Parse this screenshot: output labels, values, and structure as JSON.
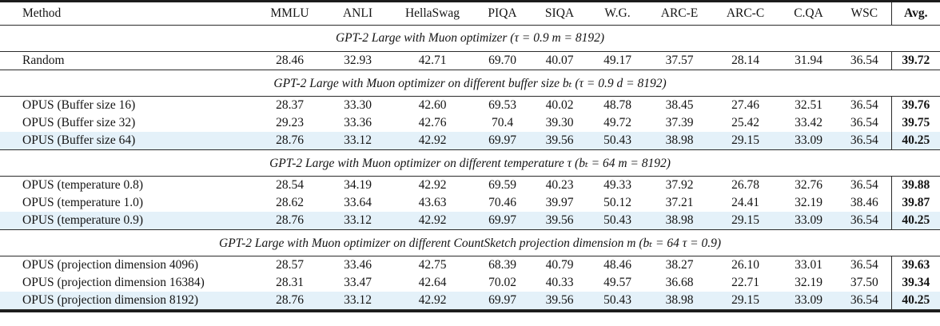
{
  "table": {
    "columns": [
      "Method",
      "MMLU",
      "ANLI",
      "HellaSwag",
      "PIQA",
      "SIQA",
      "W.G.",
      "ARC-E",
      "ARC-C",
      "C.QA",
      "WSC",
      "Avg."
    ],
    "highlight_color": "#e4f1f9",
    "sections": [
      {
        "title": "GPT-2 Large with Muon optimizer (τ = 0.9 m = 8192)",
        "rows": [
          {
            "method": "Random",
            "values": [
              "28.46",
              "32.93",
              "42.71",
              "69.70",
              "40.07",
              "49.17",
              "37.57",
              "28.14",
              "31.94",
              "36.54"
            ],
            "avg": "39.72",
            "highlight": false
          }
        ]
      },
      {
        "title": "GPT-2 Large with Muon optimizer on different buffer size bₜ (τ = 0.9 d = 8192)",
        "rows": [
          {
            "method": "OPUS (Buffer size 16)",
            "values": [
              "28.37",
              "33.30",
              "42.60",
              "69.53",
              "40.02",
              "48.78",
              "38.45",
              "27.46",
              "32.51",
              "36.54"
            ],
            "avg": "39.76",
            "highlight": false
          },
          {
            "method": "OPUS (Buffer size 32)",
            "values": [
              "29.23",
              "33.36",
              "42.76",
              "70.4",
              "39.30",
              "49.72",
              "37.39",
              "25.42",
              "33.42",
              "36.54"
            ],
            "avg": "39.75",
            "highlight": false
          },
          {
            "method": "OPUS (Buffer size 64)",
            "values": [
              "28.76",
              "33.12",
              "42.92",
              "69.97",
              "39.56",
              "50.43",
              "38.98",
              "29.15",
              "33.09",
              "36.54"
            ],
            "avg": "40.25",
            "highlight": true
          }
        ]
      },
      {
        "title": "GPT-2 Large with Muon optimizer on different temperature τ (bₜ = 64 m = 8192)",
        "rows": [
          {
            "method": "OPUS (temperature 0.8)",
            "values": [
              "28.54",
              "34.19",
              "42.92",
              "69.59",
              "40.23",
              "49.33",
              "37.92",
              "26.78",
              "32.76",
              "36.54"
            ],
            "avg": "39.88",
            "highlight": false
          },
          {
            "method": "OPUS (temperature 1.0)",
            "values": [
              "28.62",
              "33.64",
              "43.63",
              "70.46",
              "39.97",
              "50.12",
              "37.21",
              "24.41",
              "32.19",
              "38.46"
            ],
            "avg": "39.87",
            "highlight": false
          },
          {
            "method": "OPUS (temperature 0.9)",
            "values": [
              "28.76",
              "33.12",
              "42.92",
              "69.97",
              "39.56",
              "50.43",
              "38.98",
              "29.15",
              "33.09",
              "36.54"
            ],
            "avg": "40.25",
            "highlight": true
          }
        ]
      },
      {
        "title": "GPT-2 Large with Muon optimizer on different CountSketch projection dimension m (bₜ = 64 τ = 0.9)",
        "rows": [
          {
            "method": "OPUS (projection dimension 4096)",
            "values": [
              "28.57",
              "33.46",
              "42.75",
              "68.39",
              "40.79",
              "48.46",
              "38.27",
              "26.10",
              "33.01",
              "36.54"
            ],
            "avg": "39.63",
            "highlight": false
          },
          {
            "method": "OPUS (projection dimension 16384)",
            "values": [
              "28.31",
              "33.47",
              "42.64",
              "70.02",
              "40.33",
              "49.57",
              "36.68",
              "22.71",
              "32.19",
              "37.50"
            ],
            "avg": "39.34",
            "highlight": false
          },
          {
            "method": "OPUS (projection dimension 8192)",
            "values": [
              "28.76",
              "33.12",
              "42.92",
              "69.97",
              "39.56",
              "50.43",
              "38.98",
              "29.15",
              "33.09",
              "36.54"
            ],
            "avg": "40.25",
            "highlight": true
          }
        ]
      }
    ]
  }
}
